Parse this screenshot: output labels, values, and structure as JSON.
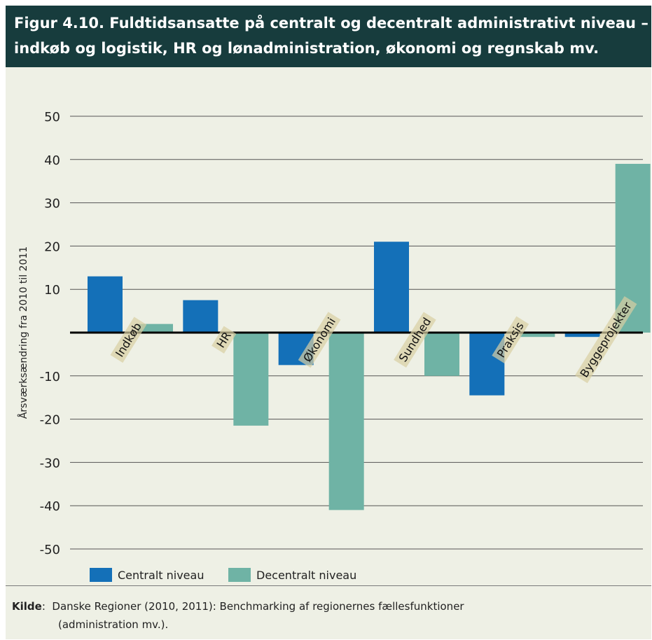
{
  "header": {
    "title_line1": "Figur 4.10. Fuldtidsansatte på centralt og decentralt administrativt niveau –",
    "title_line2": "indkøb og logistik, HR og lønadministration, økonomi og regnskab mv."
  },
  "colors": {
    "header_bg": "#173c3d",
    "panel_bg": "#eef0e5",
    "central": "#1470b8",
    "decentral": "#6fb3a5",
    "category_label_bg": "#d9cfa3",
    "category_label_overlap": "#a699cc"
  },
  "chart_data": {
    "type": "bar",
    "title": "Figur 4.10. Fuldtidsansatte på centralt og decentralt administrativt niveau – indkøb og logistik, HR og lønadministration, økonomi og regnskab mv.",
    "ylabel": "Årsværksændring fra 2010 til 2011",
    "xlabel": "",
    "categories": [
      "Indkøb",
      "HR",
      "Økonomi",
      "Sundhed",
      "Praksis",
      "Byggeprojekter"
    ],
    "series": [
      {
        "name": "Centralt niveau",
        "values": [
          13,
          7.5,
          -7.5,
          21,
          -14.5,
          -1
        ]
      },
      {
        "name": "Decentralt niveau",
        "values": [
          2,
          -21.5,
          -41,
          -10,
          -1,
          39
        ]
      }
    ],
    "ylim": [
      -50,
      50
    ],
    "yticks": [
      50,
      40,
      30,
      20,
      10,
      -10,
      -20,
      -30,
      -40,
      -50
    ],
    "grid": true,
    "legend_position": "bottom-left"
  },
  "source": {
    "label": "Kilde",
    "line1": "Danske Regioner (2010, 2011): Benchmarking af regionernes fællesfunktioner",
    "line2": "(administration mv.)."
  }
}
